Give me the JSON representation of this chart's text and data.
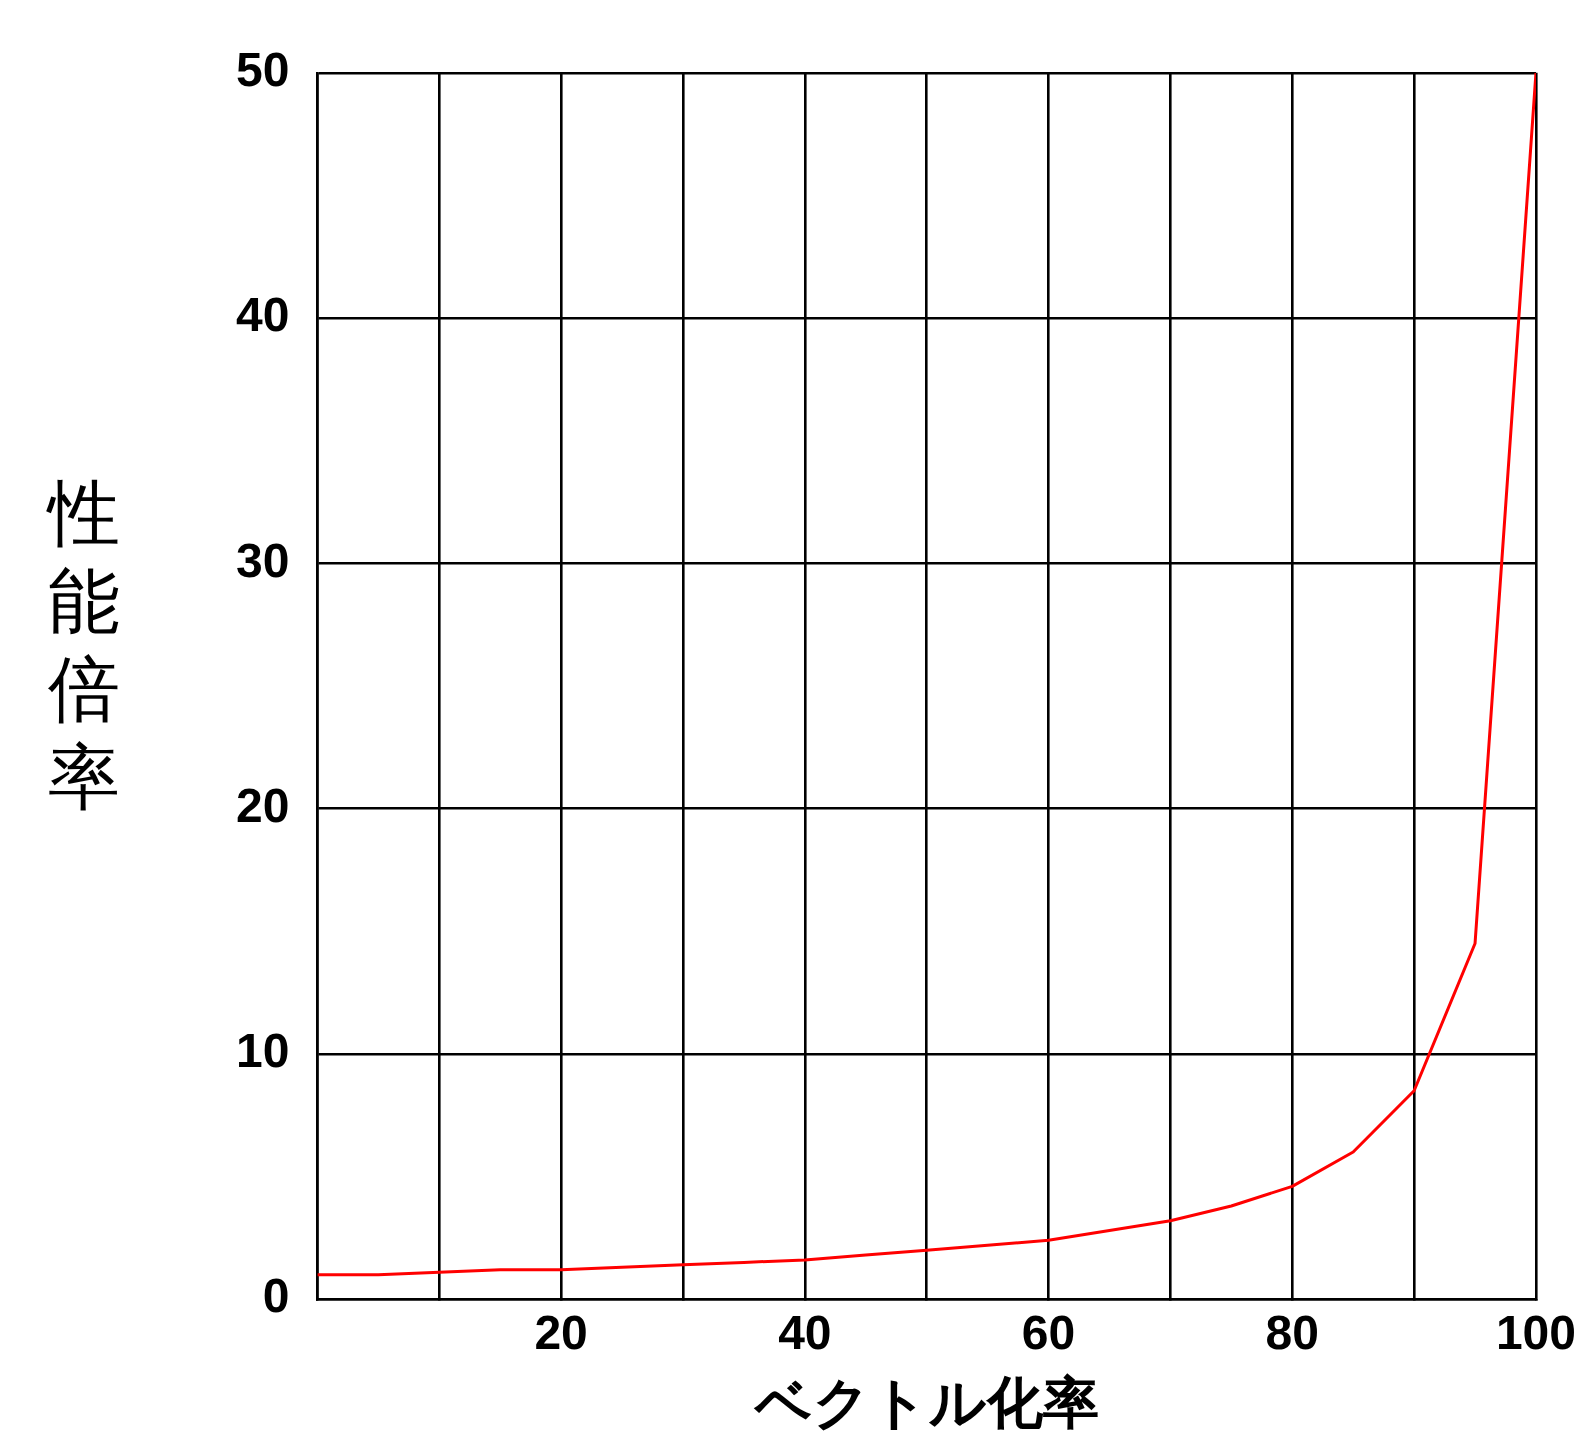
{
  "chart_data": {
    "type": "line",
    "xlabel": "ベクトル化率",
    "ylabel": "性能倍率",
    "x": [
      0,
      5,
      10,
      15,
      20,
      25,
      30,
      35,
      40,
      45,
      50,
      55,
      60,
      65,
      70,
      75,
      80,
      85,
      90,
      95,
      100
    ],
    "series": [
      {
        "color": "#ff0000",
        "values": [
          1,
          1.0,
          1.1,
          1.2,
          1.2,
          1.3,
          1.4,
          1.5,
          1.6,
          1.8,
          2.0,
          2.2,
          2.4,
          2.8,
          3.2,
          3.8,
          4.6,
          6.0,
          8.5,
          14.5,
          50
        ]
      }
    ],
    "xlim": [
      0,
      100
    ],
    "ylim": [
      0,
      50
    ],
    "xticks": [
      {
        "value": 0,
        "label": null
      },
      {
        "value": 10,
        "label": null
      },
      20,
      {
        "value": 30,
        "label": null
      },
      40,
      {
        "value": 50,
        "label": null
      },
      60,
      {
        "value": 70,
        "label": null
      },
      80,
      {
        "value": 90,
        "label": null
      },
      100
    ],
    "yticks": [
      0,
      10,
      20,
      30,
      40,
      50
    ],
    "grid": true,
    "legend": false,
    "marker": "none",
    "line_style": "solid"
  }
}
